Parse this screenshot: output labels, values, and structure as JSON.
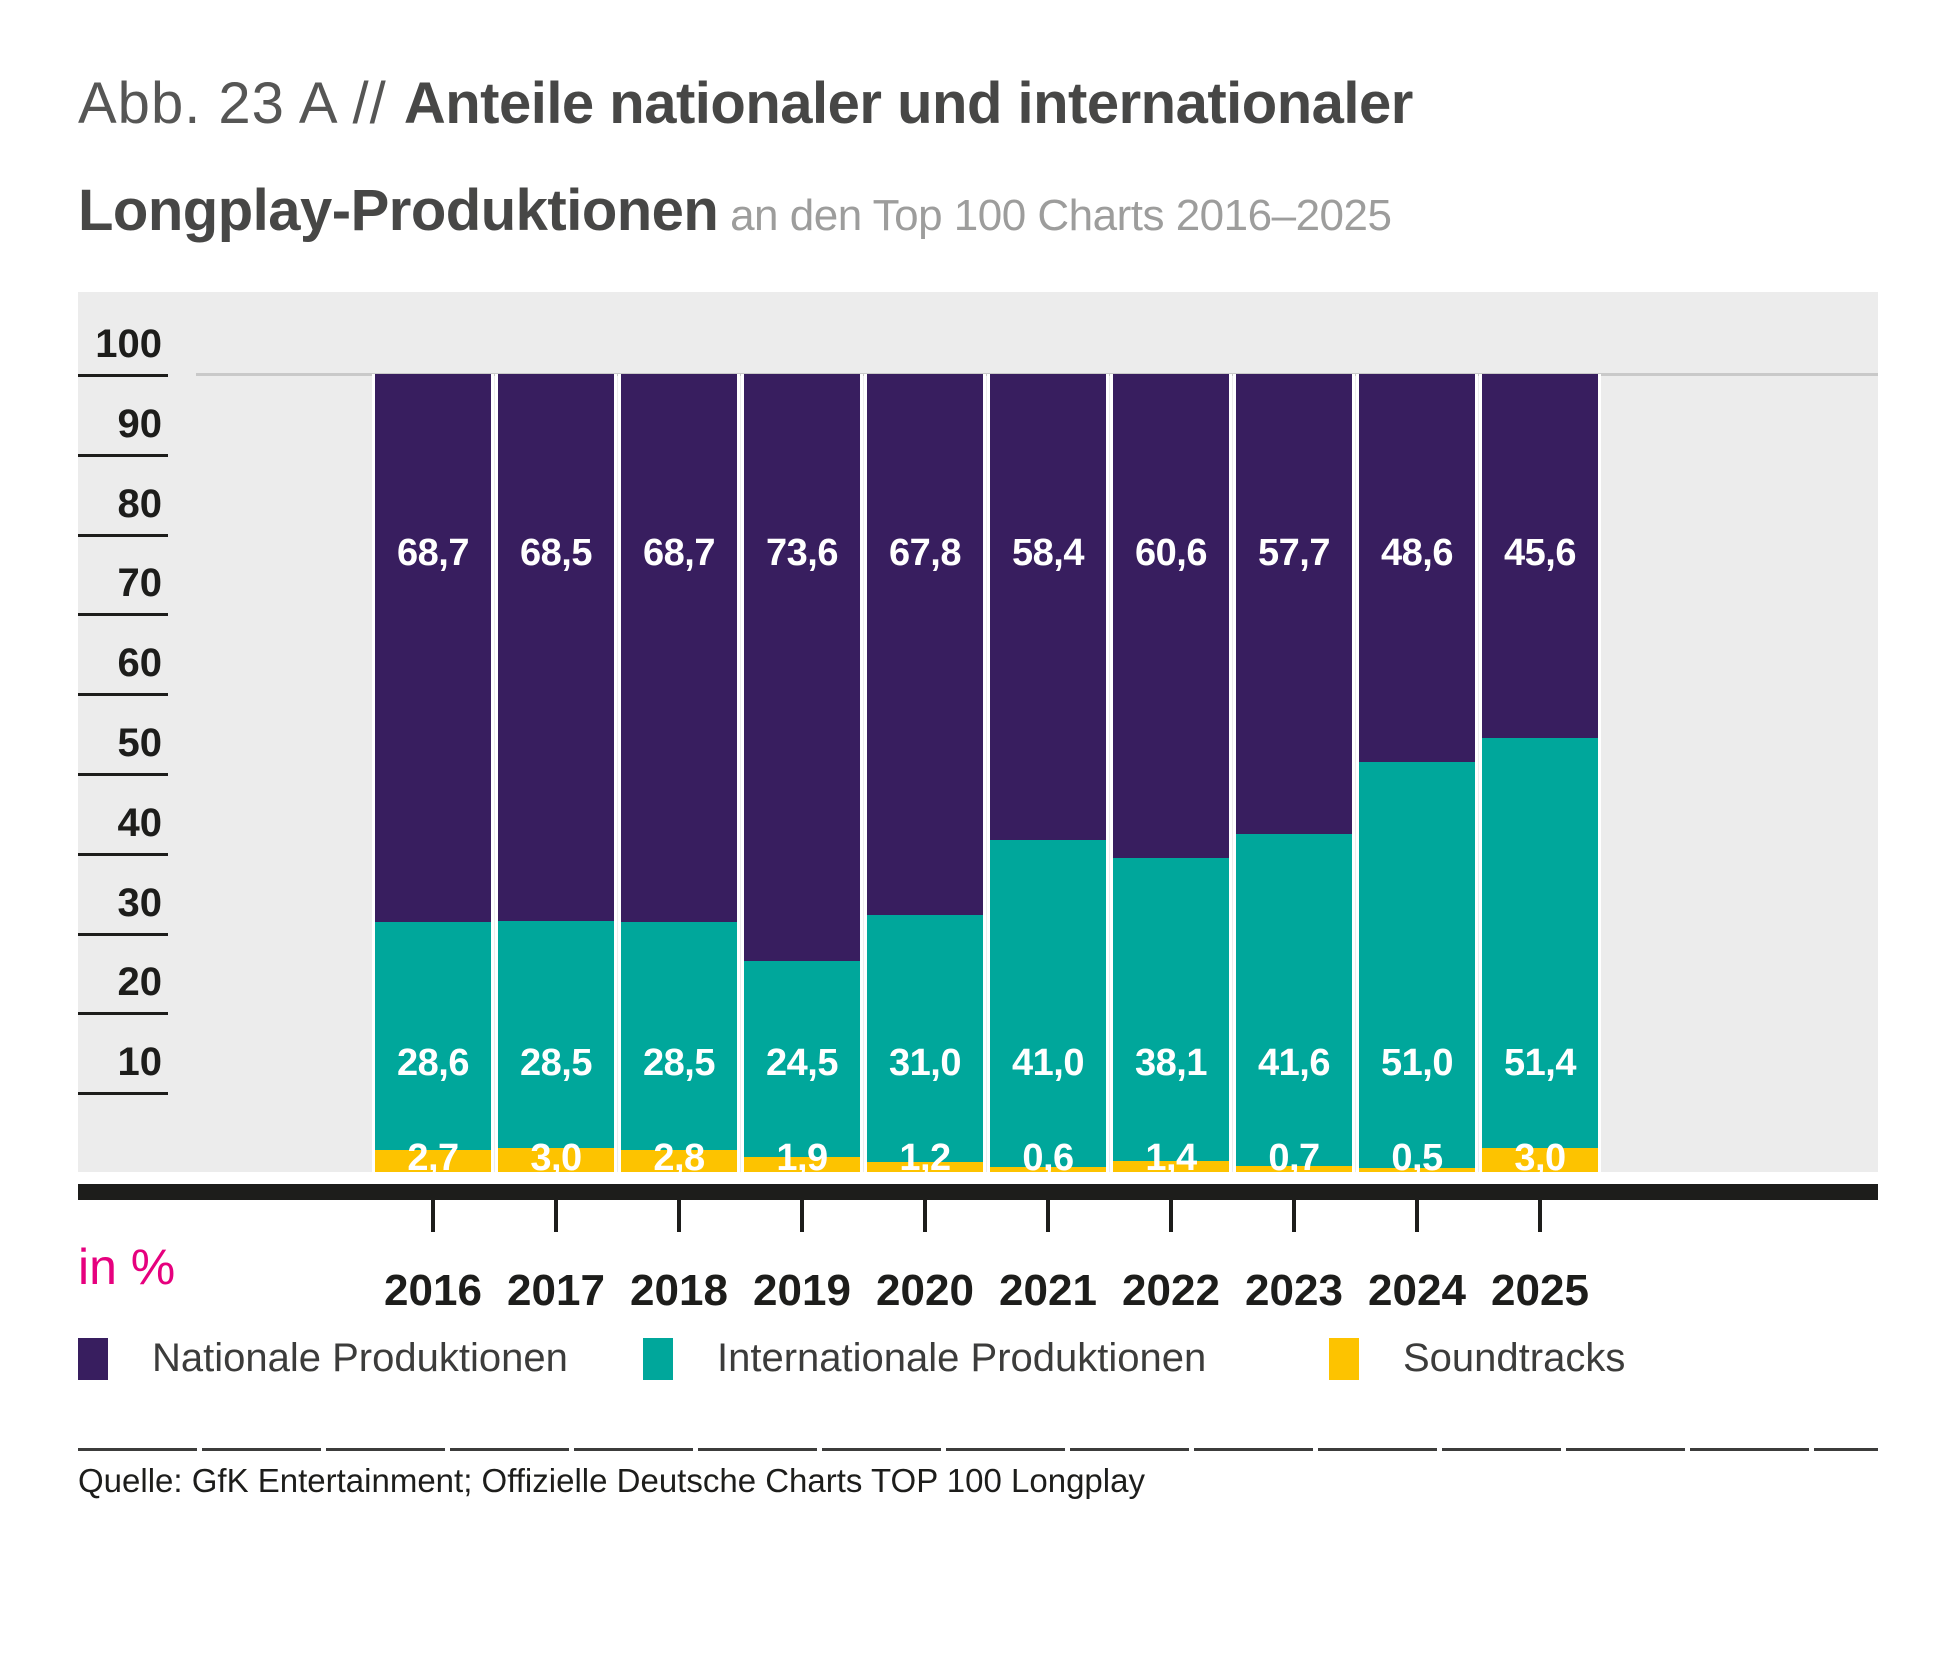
{
  "title": {
    "prefix": "Abb. 23 A // ",
    "bold_line1": "Anteile nationaler und internationaler",
    "bold_line2": "Longplay-Produktionen",
    "subtitle": " an den Top 100 Charts 2016–2025"
  },
  "axis": {
    "unit_label": "in %",
    "y_ticks": [
      100,
      90,
      80,
      70,
      60,
      50,
      40,
      30,
      20,
      10
    ]
  },
  "colors": {
    "national": "#381e5f",
    "international": "#00a79b",
    "soundtracks": "#fdc300",
    "accent_pink": "#e6007e",
    "plot_background": "#ececec",
    "axis_black": "#1d1d1b",
    "value_label": "#ffffff"
  },
  "legend": [
    {
      "label": "Nationale Produktionen",
      "color": "#381e5f"
    },
    {
      "label": "Internationale Produktionen",
      "color": "#00a79b"
    },
    {
      "label": "Soundtracks",
      "color": "#fdc300"
    }
  ],
  "source": "Quelle: GfK Entertainment; Offizielle Deutsche Charts TOP 100 Longplay",
  "chart_data": {
    "type": "bar",
    "stacked": true,
    "title": "Anteile nationaler und internationaler Longplay-Produktionen an den Top 100 Charts 2016–2025",
    "xlabel": "",
    "ylabel": "in %",
    "ylim": [
      0,
      100
    ],
    "grid": "single line at 100",
    "legend_position": "bottom",
    "value_label_format": "one decimal, comma as decimal separator",
    "categories": [
      "2016",
      "2017",
      "2018",
      "2019",
      "2020",
      "2021",
      "2022",
      "2023",
      "2024",
      "2025"
    ],
    "series": [
      {
        "name": "Nationale Produktionen",
        "color": "#381e5f",
        "stack_position": "top",
        "values": [
          68.7,
          68.5,
          68.7,
          73.6,
          67.8,
          58.4,
          60.6,
          57.7,
          48.6,
          45.6
        ]
      },
      {
        "name": "Internationale Produktionen",
        "color": "#00a79b",
        "stack_position": "middle",
        "values": [
          28.6,
          28.5,
          28.5,
          24.5,
          31.0,
          41.0,
          38.1,
          41.6,
          51.0,
          51.4
        ]
      },
      {
        "name": "Soundtracks",
        "color": "#fdc300",
        "stack_position": "bottom",
        "values": [
          2.7,
          3.0,
          2.8,
          1.9,
          1.2,
          0.6,
          1.4,
          0.7,
          0.5,
          3.0
        ]
      }
    ]
  }
}
